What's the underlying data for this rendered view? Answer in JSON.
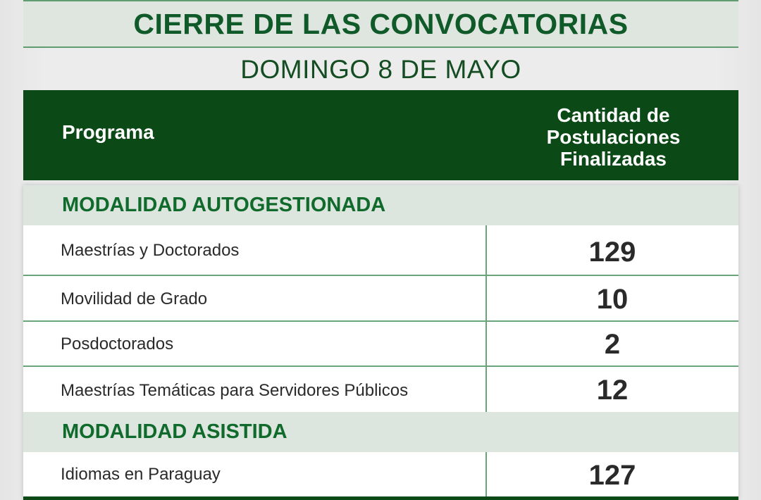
{
  "title": "CIERRE DE LAS CONVOCATORIAS",
  "subtitle": "DOMINGO 8 DE MAYO",
  "header": {
    "program": "Programa",
    "count_line1": "Cantidad de",
    "count_line2": "Postulaciones",
    "count_line3": "Finalizadas"
  },
  "sections": [
    {
      "label": "MODALIDAD AUTOGESTIONADA",
      "rows": [
        {
          "program": "Maestrías y Doctorados",
          "count": "129"
        },
        {
          "program": "Movilidad de Grado",
          "count": "10"
        },
        {
          "program": "Posdoctorados",
          "count": "2"
        },
        {
          "program": "Maestrías Temáticas para Servidores Públicos",
          "count": "12"
        }
      ]
    },
    {
      "label": "MODALIDAD ASISTIDA",
      "rows": [
        {
          "program": "Idiomas en Paraguay",
          "count": "127"
        }
      ]
    }
  ]
}
